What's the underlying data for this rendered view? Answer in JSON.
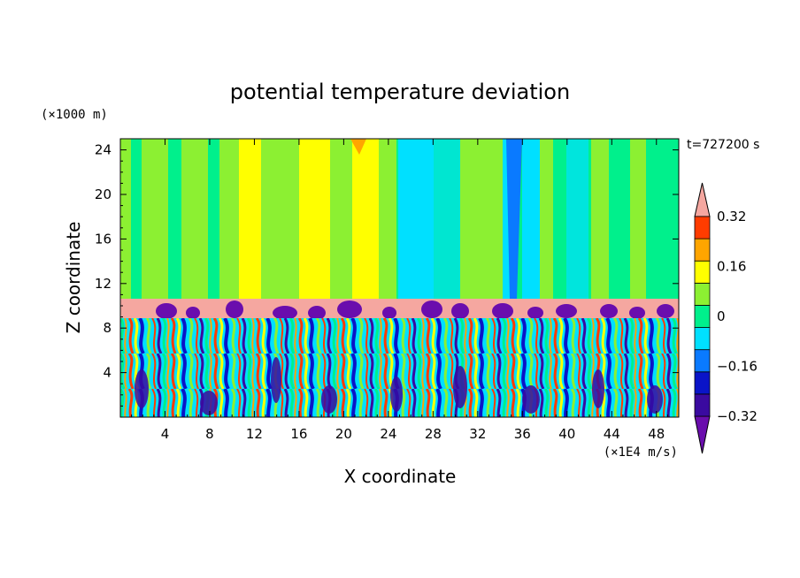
{
  "chart_data": {
    "type": "heatmap",
    "title": "potential temperature deviation",
    "time_label": "t=727200 s",
    "xlabel": "X coordinate",
    "ylabel": "Z coordinate",
    "x_unit": "(×1E4 m/s)",
    "y_unit": "(×1000 m)",
    "xlim": [
      0,
      50
    ],
    "ylim": [
      0,
      25
    ],
    "x_ticks": [
      4,
      8,
      12,
      16,
      20,
      24,
      28,
      32,
      36,
      40,
      44,
      48
    ],
    "y_ticks": [
      4,
      8,
      12,
      16,
      20,
      24
    ],
    "colorbar": {
      "levels": [
        -0.4,
        -0.32,
        -0.24,
        -0.16,
        -0.08,
        0,
        0.08,
        0.16,
        0.24,
        0.32,
        0.4
      ],
      "tick_labels": [
        "0.32",
        "0.16",
        "0",
        "−0.16",
        "−0.32"
      ],
      "tick_values": [
        0.32,
        0.16,
        0,
        -0.16,
        -0.32
      ],
      "colors": [
        "#6a0dad",
        "#3a0aa0",
        "#0a14c8",
        "#0a7aff",
        "#00e0ff",
        "#00f08c",
        "#8cf032",
        "#ffff00",
        "#ffa500",
        "#ff3c00",
        "#f5a7a0"
      ]
    },
    "layers": [
      {
        "z_range": [
          0,
          9
        ],
        "pattern": "turbulent mixed field"
      },
      {
        "z_range": [
          9,
          10.8
        ],
        "pattern": "inversion layer",
        "value": 0.4
      },
      {
        "z_range": [
          10.8,
          25
        ],
        "pattern": "vertical streaks"
      }
    ]
  }
}
